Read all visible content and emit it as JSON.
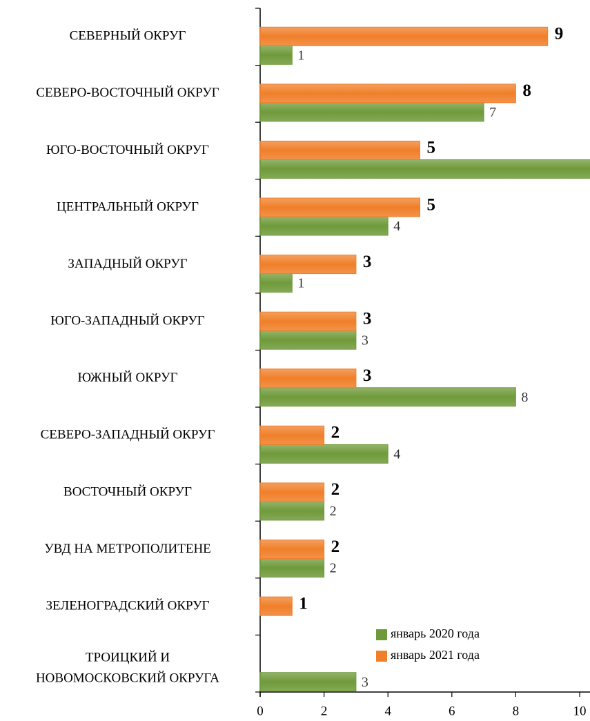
{
  "chart_data": {
    "type": "barh",
    "categories": [
      "СЕВЕРНЫЙ ОКРУГ",
      "СЕВЕРО-ВОСТОЧНЫЙ ОКРУГ",
      "ЮГО-ВОСТОЧНЫЙ ОКРУГ",
      "ЦЕНТРАЛЬНЫЙ ОКРУГ",
      "ЗАПАДНЫЙ ОКРУГ",
      "ЮГО-ЗАПАДНЫЙ ОКРУГ",
      "ЮЖНЫЙ ОКРУГ",
      "СЕВЕРО-ЗАПАДНЫЙ ОКРУГ",
      "ВОСТОЧНЫЙ ОКРУГ",
      "УВД НА МЕТРОПОЛИТЕНЕ",
      "ЗЕЛЕНОГРАДСКИЙ ОКРУГ",
      "ТРОИЦКИЙ И\nНОВОМОСКОВСКИЙ ОКРУГА"
    ],
    "series": [
      {
        "name": "январь 2020 года",
        "color": "#6f9a3a",
        "values": [
          1,
          7,
          11,
          4,
          1,
          3,
          8,
          4,
          2,
          2,
          null,
          3
        ]
      },
      {
        "name": "январь 2021 года",
        "color": "#f07f2a",
        "values": [
          9,
          8,
          5,
          5,
          3,
          3,
          3,
          2,
          2,
          2,
          1,
          null
        ]
      }
    ],
    "xlim": [
      0,
      10.3
    ],
    "xticks": [
      0,
      2,
      4,
      6,
      8,
      10
    ]
  }
}
